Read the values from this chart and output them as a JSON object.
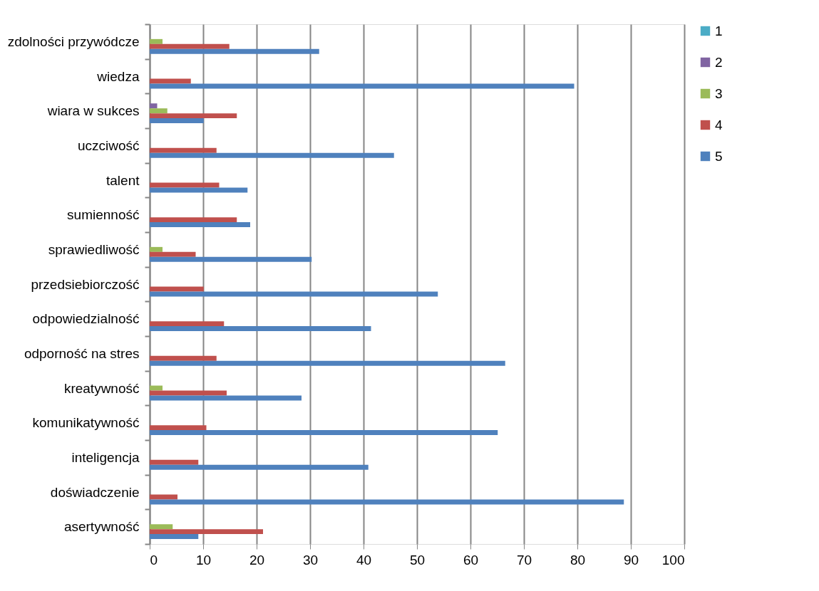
{
  "chart_data": {
    "type": "bar",
    "orientation": "horizontal",
    "categories": [
      "zdolności przywódcze",
      "wiedza",
      "wiara w sukces",
      "uczciwość",
      "talent",
      "sumienność",
      "sprawiedliwość",
      "przedsiebiorczość",
      "odpowiedzialność",
      "odporność na stres",
      "kreatywność",
      "komunikatywność",
      "inteligencja",
      "doświadczenie",
      "asertywność"
    ],
    "series": [
      {
        "name": "1",
        "color": "#4bacc6",
        "values": [
          0,
          0,
          0,
          0,
          0,
          0,
          0,
          0,
          0,
          0,
          0,
          0,
          0,
          0,
          0
        ]
      },
      {
        "name": "2",
        "color": "#8064a2",
        "values": [
          0,
          0,
          1.4,
          0,
          0,
          0,
          0,
          0,
          0,
          0,
          0,
          0,
          0,
          0,
          0
        ]
      },
      {
        "name": "3",
        "color": "#9bbb59",
        "values": [
          2.4,
          0,
          3.3,
          0,
          0,
          0,
          2.4,
          0,
          0,
          0,
          2.4,
          0,
          0,
          0,
          4.3
        ]
      },
      {
        "name": "4",
        "color": "#c0504d",
        "values": [
          14.9,
          7.7,
          16.3,
          12.5,
          13.0,
          16.3,
          8.6,
          10.1,
          13.9,
          12.5,
          14.4,
          10.6,
          9.1,
          5.2,
          21.2
        ]
      },
      {
        "name": "5",
        "color": "#4f81bd",
        "values": [
          31.7,
          79.4,
          10.1,
          45.7,
          18.3,
          18.8,
          30.3,
          53.9,
          41.4,
          66.5,
          28.4,
          65.1,
          40.9,
          88.7,
          9.1
        ]
      }
    ],
    "xlim": [
      0,
      100
    ],
    "xticks": [
      0,
      10,
      20,
      30,
      40,
      50,
      60,
      70,
      80,
      90,
      100
    ],
    "grid": "x",
    "legend": "right"
  }
}
